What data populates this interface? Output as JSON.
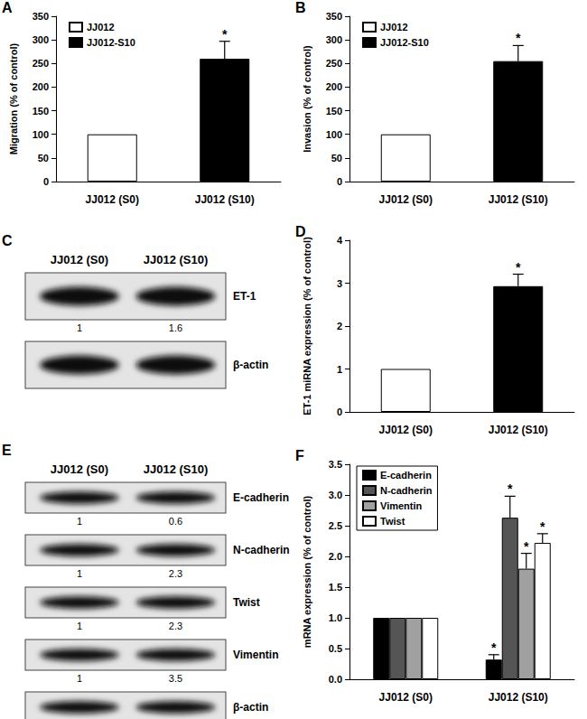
{
  "chart_data": [
    {
      "panel": "A",
      "type": "bar",
      "y_label": "Migration (% of control)",
      "categories": [
        "JJ012 (S0)",
        "JJ012 (S10)"
      ],
      "series": [
        {
          "name": "JJ012",
          "color": "#ffffff",
          "values": [
            100,
            null
          ],
          "errors": [
            null,
            null
          ],
          "significance": [
            null,
            null
          ]
        },
        {
          "name": "JJ012-S10",
          "color": "#000000",
          "values": [
            null,
            260
          ],
          "errors": [
            null,
            37
          ],
          "significance": [
            null,
            "*"
          ]
        }
      ],
      "ylim": [
        0,
        350
      ],
      "yticks": [
        0,
        50,
        100,
        150,
        200,
        250,
        300,
        350
      ],
      "grid": false,
      "legend": "top-left"
    },
    {
      "panel": "B",
      "type": "bar",
      "y_label": "Invasion (% of control)",
      "categories": [
        "JJ012 (S0)",
        "JJ012 (S10)"
      ],
      "series": [
        {
          "name": "JJ012",
          "color": "#ffffff",
          "values": [
            100,
            null
          ],
          "errors": [
            null,
            null
          ],
          "significance": [
            null,
            null
          ]
        },
        {
          "name": "JJ012-S10",
          "color": "#000000",
          "values": [
            null,
            255
          ],
          "errors": [
            null,
            33
          ],
          "significance": [
            null,
            "*"
          ]
        }
      ],
      "ylim": [
        0,
        350
      ],
      "yticks": [
        0,
        50,
        100,
        150,
        200,
        250,
        300,
        350
      ],
      "grid": false,
      "legend": "top-left"
    },
    {
      "panel": "C",
      "type": "blot",
      "columns": [
        "JJ012 (S0)",
        "JJ012 (S10)"
      ],
      "rows": [
        {
          "label": "ET-1",
          "values": [
            1,
            1.6
          ]
        },
        {
          "label": "β-actin"
        }
      ]
    },
    {
      "panel": "D",
      "type": "bar",
      "y_label": "ET-1 miRNA expression (% of control)",
      "categories": [
        "JJ012 (S0)",
        "JJ012 (S10)"
      ],
      "values": [
        1,
        2.93
      ],
      "colors": [
        "#ffffff",
        "#000000"
      ],
      "errors": [
        null,
        0.28
      ],
      "significance": [
        null,
        "*"
      ],
      "ylim": [
        0,
        4
      ],
      "yticks": [
        0,
        1,
        2,
        3,
        4
      ],
      "grid": false
    },
    {
      "panel": "E",
      "type": "blot",
      "columns": [
        "JJ012 (S0)",
        "JJ012 (S10)"
      ],
      "rows": [
        {
          "label": "E-cadherin",
          "values": [
            1,
            0.6
          ]
        },
        {
          "label": "N-cadherin",
          "values": [
            1,
            2.3
          ]
        },
        {
          "label": "Twist",
          "values": [
            1,
            2.3
          ]
        },
        {
          "label": "Vimentin",
          "values": [
            1,
            3.5
          ]
        },
        {
          "label": "β-actin"
        }
      ]
    },
    {
      "panel": "F",
      "type": "bar",
      "y_label": "mRNA expression (% of control)",
      "categories": [
        "JJ012 (S0)",
        "JJ012 (S10)"
      ],
      "series": [
        {
          "name": "E-cadherin",
          "color": "#000000",
          "values": [
            1,
            0.32
          ],
          "errors": [
            null,
            0.08
          ],
          "significance": [
            null,
            "*"
          ]
        },
        {
          "name": "N-cadherin",
          "color": "#555555",
          "values": [
            1,
            2.63
          ],
          "errors": [
            null,
            0.35
          ],
          "significance": [
            null,
            "*"
          ]
        },
        {
          "name": "Vimentin",
          "color": "#a0a0a0",
          "values": [
            1,
            1.8
          ],
          "errors": [
            null,
            0.25
          ],
          "significance": [
            null,
            "*"
          ]
        },
        {
          "name": "Twist",
          "color": "#ffffff",
          "values": [
            1,
            2.22
          ],
          "errors": [
            null,
            0.15
          ],
          "significance": [
            null,
            "*"
          ]
        }
      ],
      "ylim": [
        0,
        3.5
      ],
      "yticks": [
        {
          "value": 0,
          "label": "0.0"
        },
        0.5,
        {
          "value": 1,
          "label": "1.0"
        },
        1.5,
        {
          "value": 2,
          "label": "2.0"
        },
        2.5,
        {
          "value": 3,
          "label": "3.0"
        },
        3.5
      ],
      "grid": false,
      "legend": "top-left"
    }
  ]
}
